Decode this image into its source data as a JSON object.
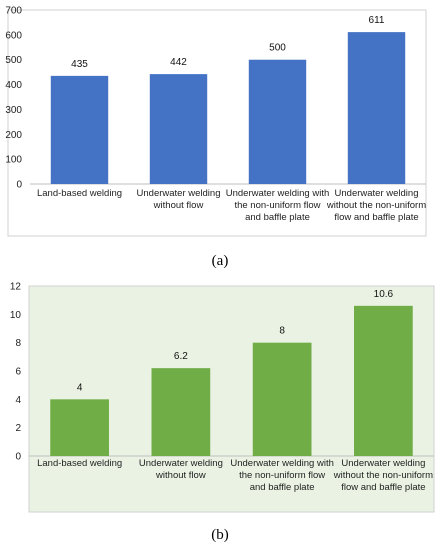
{
  "captions": {
    "a": "(a)",
    "b": "(b)"
  },
  "chart_data": [
    {
      "type": "bar",
      "categories": [
        "Land-based welding",
        "Underwater welding without flow",
        "Underwater welding with the non-uniform flow and baffle plate",
        "Underwater welding without the non-uniform flow and baffle plate"
      ],
      "values": [
        435,
        442,
        500,
        611
      ],
      "ylim": [
        0,
        700
      ],
      "yticks": [
        0,
        100,
        200,
        300,
        400,
        500,
        600,
        700
      ],
      "grid": false,
      "bar_color": "#4472C4",
      "plot_background": "#ffffff",
      "data_labels": [
        "435",
        "442",
        "500",
        "611"
      ]
    },
    {
      "type": "bar",
      "categories": [
        "Land-based welding",
        "Underwater welding without flow",
        "Underwater welding with the non-uniform flow and baffle plate",
        "Underwater welding without the non-uniform flow and baffle plate"
      ],
      "values": [
        4,
        6.2,
        8,
        10.6
      ],
      "ylim": [
        0,
        12
      ],
      "yticks": [
        0,
        2,
        4,
        6,
        8,
        10,
        12
      ],
      "grid": false,
      "bar_color": "#70AD47",
      "plot_background": "#EAF3E3",
      "data_labels": [
        "4",
        "6.2",
        "8",
        "10.6"
      ]
    }
  ]
}
